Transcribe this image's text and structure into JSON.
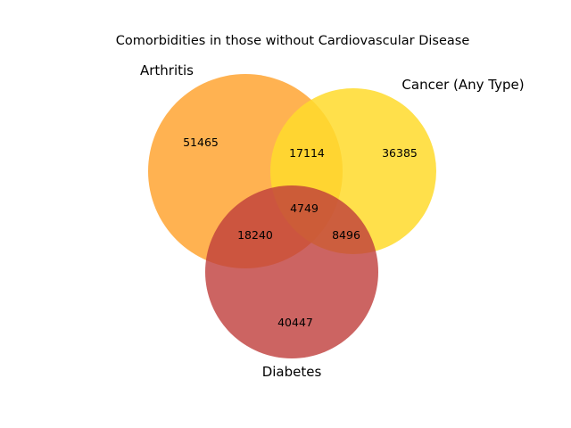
{
  "title": "Comorbidities in those without Cardiovascular Disease",
  "sets": {
    "arthritis": {
      "label": "Arthritis",
      "color": "#ffa533",
      "opacity": 0.85
    },
    "cancer": {
      "label": "Cancer (Any Type)",
      "color": "#ffda2b",
      "opacity": 0.85
    },
    "diabetes": {
      "label": "Diabetes",
      "color": "#bf3d3b",
      "opacity": 0.8
    }
  },
  "regions": {
    "arthritis_only": "51465",
    "cancer_only": "36385",
    "diabetes_only": "40447",
    "arthritis_cancer": "17114",
    "arthritis_diabetes": "18240",
    "cancer_diabetes": "8496",
    "all_three": "4749"
  }
}
